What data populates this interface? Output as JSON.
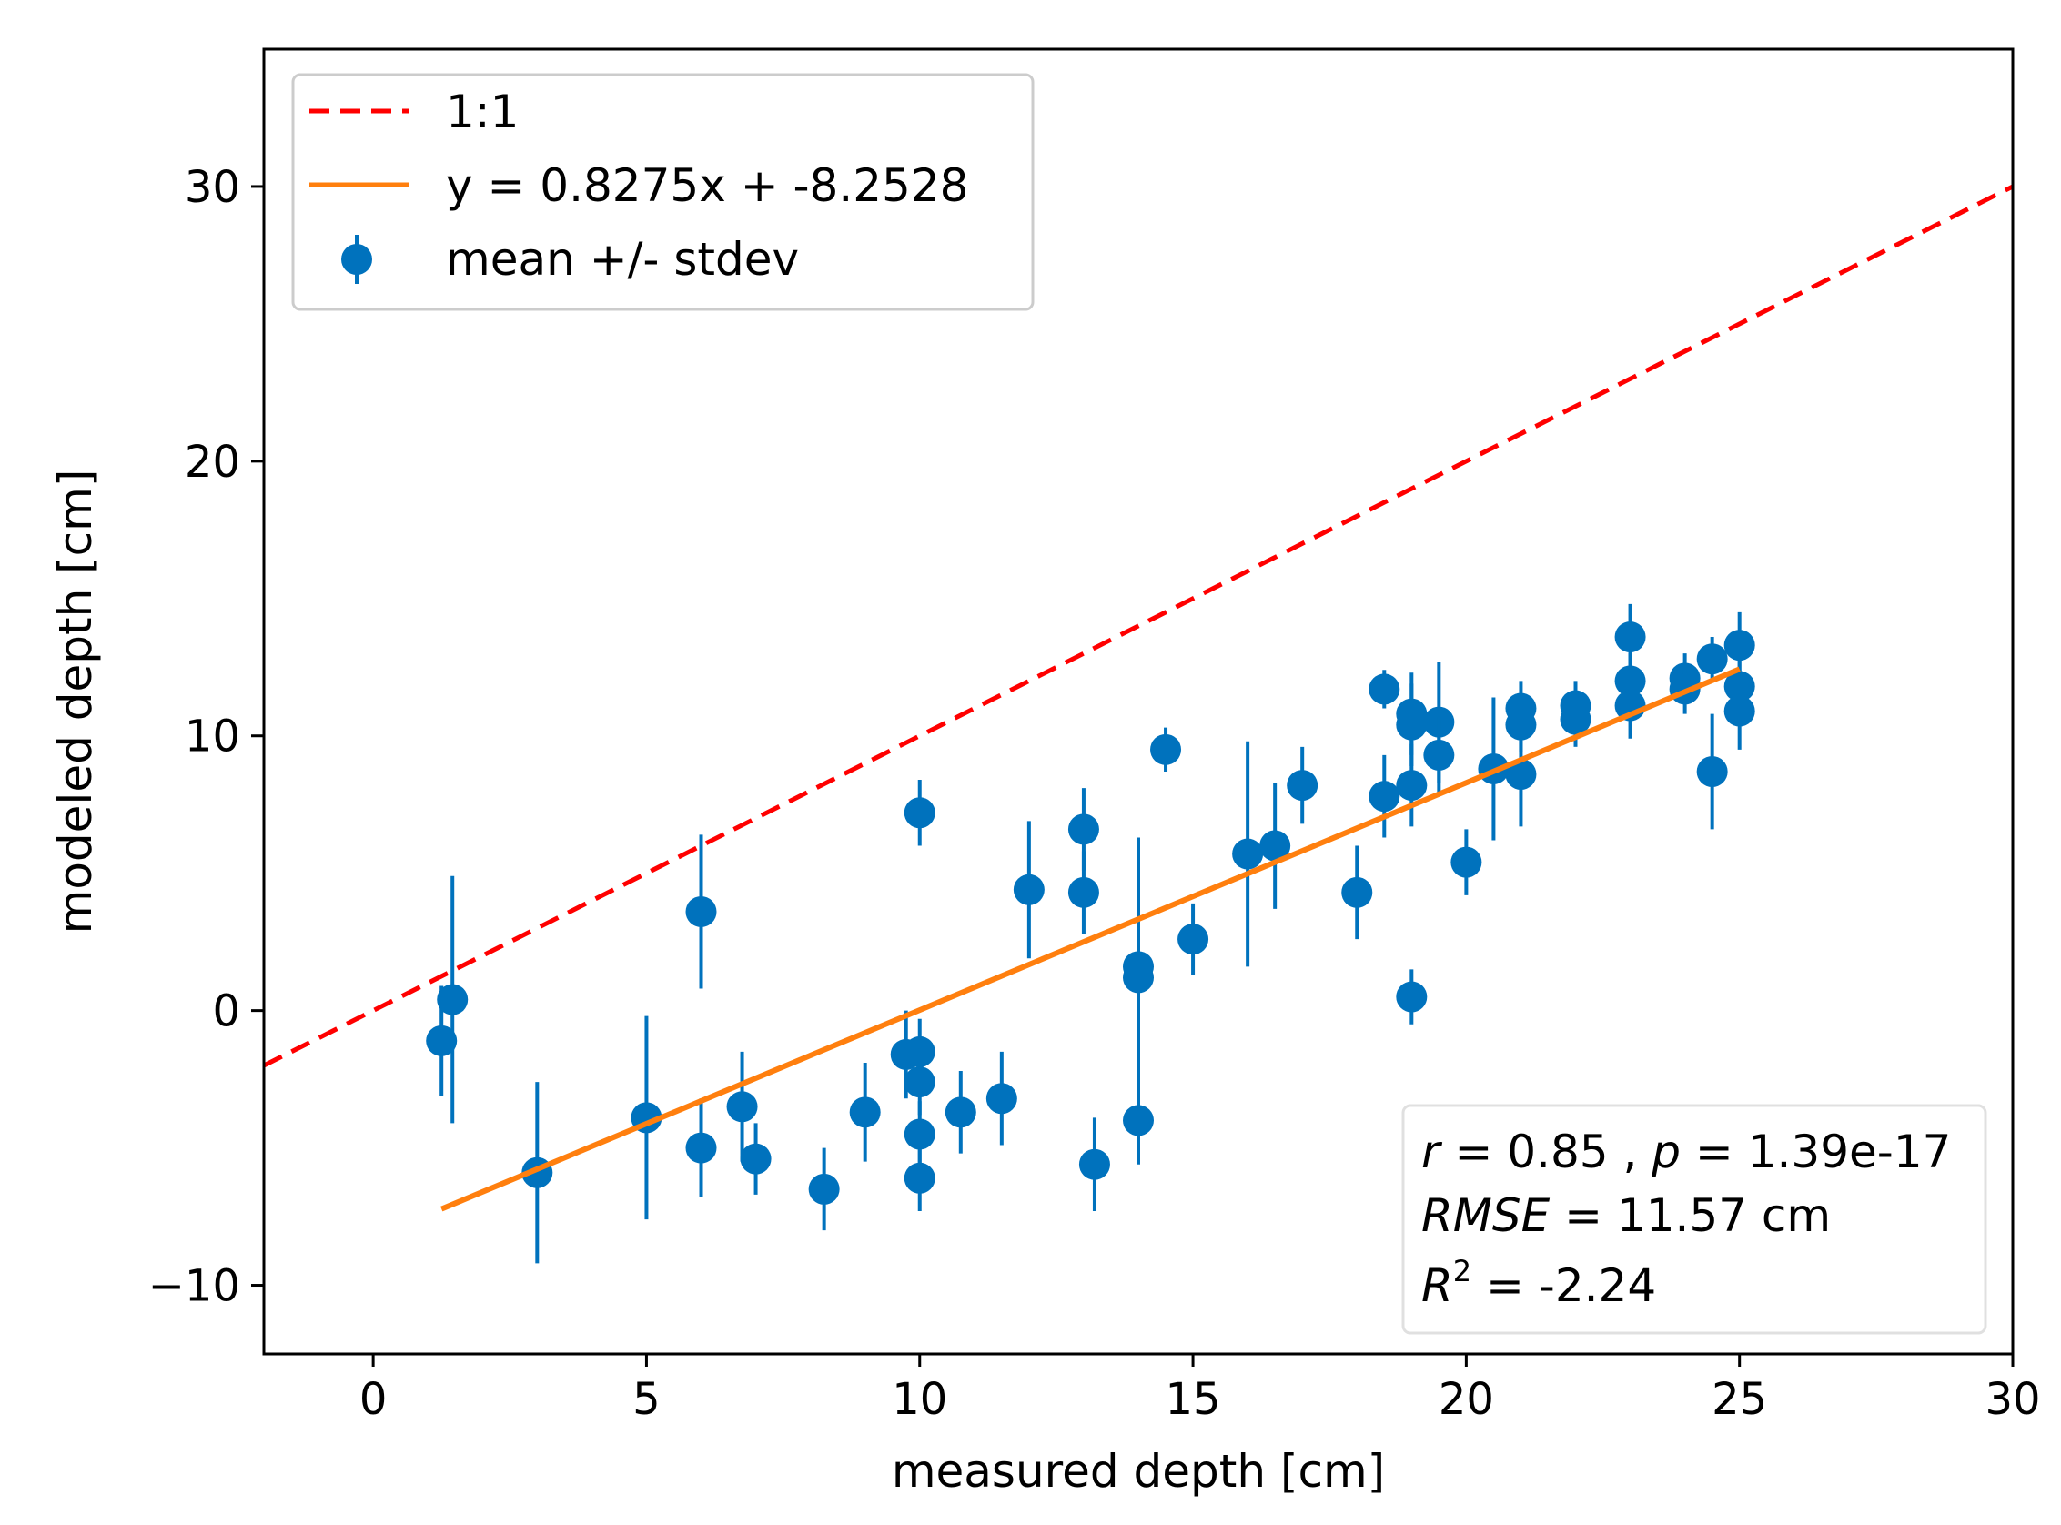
{
  "chart_data": {
    "type": "scatter",
    "xlabel": "measured depth [cm]",
    "ylabel": "modeled depth [cm]",
    "xlim": [
      -2,
      30
    ],
    "ylim": [
      -12.5,
      35
    ],
    "x_ticks": [
      0,
      5,
      10,
      15,
      20,
      25,
      30
    ],
    "y_ticks": [
      -10,
      0,
      10,
      20,
      30
    ],
    "x_tick_labels": [
      "0",
      "5",
      "10",
      "15",
      "20",
      "25",
      "30"
    ],
    "y_tick_labels": [
      "−10",
      "0",
      "10",
      "20",
      "30"
    ],
    "grid": false,
    "legend_position": "top-left",
    "colors": {
      "one_to_one": "#ff0000",
      "fit": "#ff7f0e",
      "points": "#0072bd"
    },
    "series": [
      {
        "name": "1:1",
        "kind": "line",
        "style": "dashed",
        "x": [
          -2,
          30
        ],
        "y": [
          -2,
          30
        ]
      },
      {
        "name": "y = 0.8275x + -8.2528",
        "kind": "line",
        "style": "solid",
        "x": [
          1.25,
          25
        ],
        "y": [
          -7.22,
          12.43
        ]
      },
      {
        "name": "mean +/- stdev",
        "kind": "errorbar",
        "points": [
          {
            "x": 1.25,
            "y": -1.1,
            "err": 2.0
          },
          {
            "x": 1.45,
            "y": 0.4,
            "err": 4.5
          },
          {
            "x": 3.0,
            "y": -5.9,
            "err": 3.3
          },
          {
            "x": 5.0,
            "y": -3.9,
            "err": 3.7
          },
          {
            "x": 6.0,
            "y": 3.6,
            "err": 2.8
          },
          {
            "x": 6.0,
            "y": -5.0,
            "err": 1.8
          },
          {
            "x": 6.75,
            "y": -3.5,
            "err": 2.0
          },
          {
            "x": 7.0,
            "y": -5.4,
            "err": 1.3
          },
          {
            "x": 8.25,
            "y": -6.5,
            "err": 1.5
          },
          {
            "x": 9.0,
            "y": -3.7,
            "err": 1.8
          },
          {
            "x": 9.75,
            "y": -1.6,
            "err": 1.6
          },
          {
            "x": 10.0,
            "y": 7.2,
            "err": 1.2
          },
          {
            "x": 10.0,
            "y": -1.5,
            "err": 1.2
          },
          {
            "x": 10.0,
            "y": -2.6,
            "err": 1.2
          },
          {
            "x": 10.0,
            "y": -4.5,
            "err": 1.2
          },
          {
            "x": 10.0,
            "y": -6.1,
            "err": 1.2
          },
          {
            "x": 10.75,
            "y": -3.7,
            "err": 1.5
          },
          {
            "x": 11.5,
            "y": -3.2,
            "err": 1.7
          },
          {
            "x": 12.0,
            "y": 4.4,
            "err": 2.5
          },
          {
            "x": 13.0,
            "y": 6.6,
            "err": 1.5
          },
          {
            "x": 13.0,
            "y": 4.3,
            "err": 1.5
          },
          {
            "x": 13.2,
            "y": -5.6,
            "err": 1.7
          },
          {
            "x": 14.0,
            "y": 1.6,
            "err": 4.7
          },
          {
            "x": 14.0,
            "y": 1.2,
            "err": 2.5
          },
          {
            "x": 14.0,
            "y": -4.0,
            "err": 1.6
          },
          {
            "x": 14.5,
            "y": 9.5,
            "err": 0.8
          },
          {
            "x": 15.0,
            "y": 2.6,
            "err": 1.3
          },
          {
            "x": 16.0,
            "y": 5.7,
            "err": 4.1
          },
          {
            "x": 16.5,
            "y": 6.0,
            "err": 2.3
          },
          {
            "x": 17.0,
            "y": 8.2,
            "err": 1.4
          },
          {
            "x": 18.0,
            "y": 4.3,
            "err": 1.7
          },
          {
            "x": 18.5,
            "y": 11.7,
            "err": 0.7
          },
          {
            "x": 18.5,
            "y": 7.8,
            "err": 1.5
          },
          {
            "x": 19.0,
            "y": 10.8,
            "err": 1.5
          },
          {
            "x": 19.0,
            "y": 10.4,
            "err": 1.5
          },
          {
            "x": 19.0,
            "y": 8.2,
            "err": 1.5
          },
          {
            "x": 19.0,
            "y": 0.5,
            "err": 1.0
          },
          {
            "x": 19.5,
            "y": 10.5,
            "err": 2.2
          },
          {
            "x": 19.5,
            "y": 9.3,
            "err": 1.4
          },
          {
            "x": 20.0,
            "y": 5.4,
            "err": 1.2
          },
          {
            "x": 20.5,
            "y": 8.8,
            "err": 2.6
          },
          {
            "x": 21.0,
            "y": 11.0,
            "err": 1.0
          },
          {
            "x": 21.0,
            "y": 10.4,
            "err": 1.0
          },
          {
            "x": 21.0,
            "y": 8.6,
            "err": 1.9
          },
          {
            "x": 22.0,
            "y": 11.1,
            "err": 0.9
          },
          {
            "x": 22.0,
            "y": 10.6,
            "err": 1.0
          },
          {
            "x": 23.0,
            "y": 13.6,
            "err": 1.2
          },
          {
            "x": 23.0,
            "y": 12.0,
            "err": 1.0
          },
          {
            "x": 23.0,
            "y": 11.1,
            "err": 1.2
          },
          {
            "x": 24.0,
            "y": 12.1,
            "err": 0.9
          },
          {
            "x": 24.0,
            "y": 11.7,
            "err": 0.9
          },
          {
            "x": 24.5,
            "y": 12.8,
            "err": 0.8
          },
          {
            "x": 24.5,
            "y": 8.7,
            "err": 2.1
          },
          {
            "x": 25.0,
            "y": 13.3,
            "err": 1.2
          },
          {
            "x": 25.0,
            "y": 11.8,
            "err": 1.2
          },
          {
            "x": 25.0,
            "y": 10.9,
            "err": 1.4
          }
        ]
      }
    ],
    "stats": {
      "r_symbol": "r",
      "r_value": " = 0.85",
      "sep": " , ",
      "p_symbol": "p",
      "p_value": " = 1.39e-17",
      "rmse_symbol": "RMSE",
      "rmse_value": " = 11.57 cm",
      "r2_symbol": "R",
      "r2_exp": "2",
      "r2_value": " = -2.24"
    }
  }
}
